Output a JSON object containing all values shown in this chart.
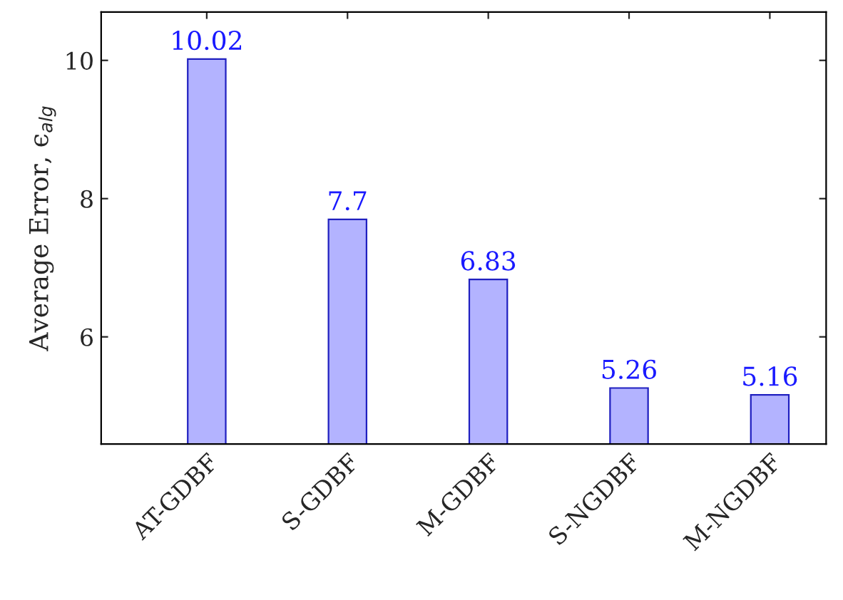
{
  "chart_data": {
    "type": "bar",
    "ylabel": "Average Error, ϵ$_{alg}$",
    "categories": [
      "AT-GDBF",
      "S-GDBF",
      "M-GDBF",
      "S-NGDBF",
      "M-NGDBF"
    ],
    "values": [
      10.02,
      7.7,
      6.83,
      5.26,
      5.16
    ],
    "color": "#b3b3ff",
    "ylim": [
      4.45,
      10.7
    ],
    "yticks": [
      6,
      8,
      10
    ],
    "grid": false,
    "data_labels": true
  }
}
